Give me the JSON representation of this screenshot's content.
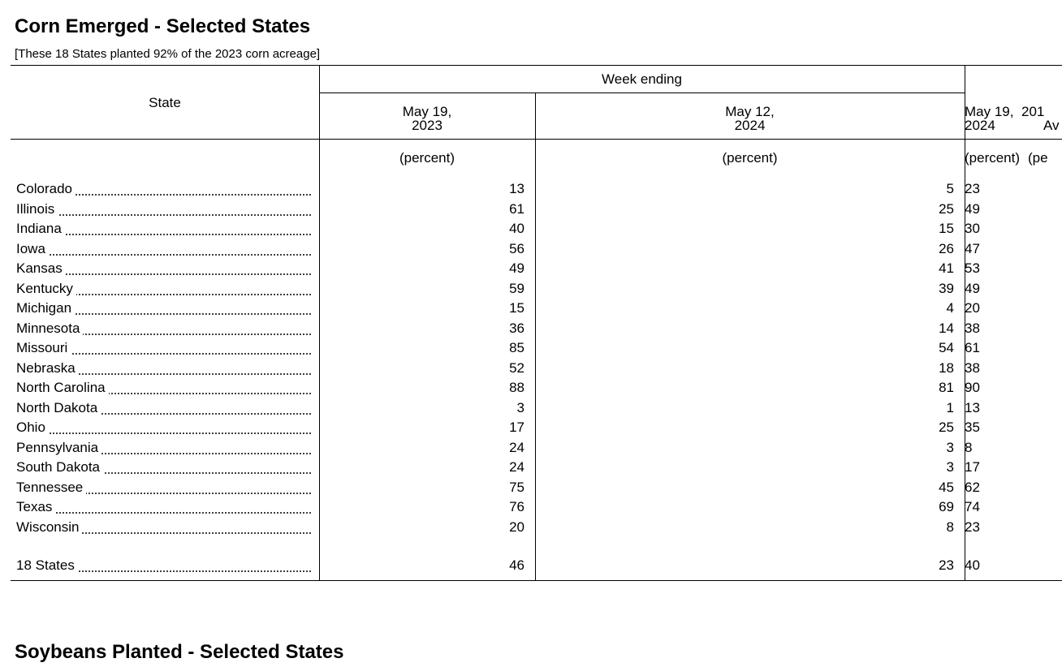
{
  "corn": {
    "title": "Corn Emerged - Selected States",
    "subtitle": "[These 18 States planted 92% of the 2023 corn acreage]",
    "table": {
      "state_header": "State",
      "group_header": "Week ending",
      "columns": [
        {
          "line1": "May 19,",
          "line2": "2023"
        },
        {
          "line1": "May 12,",
          "line2": "2024"
        },
        {
          "line1": "May 19,",
          "line2": "2024"
        }
      ],
      "partial_column": {
        "line1": "201",
        "line2": "Av",
        "unit": "(pe"
      },
      "unit": "(percent)",
      "rows": [
        {
          "state": "Colorado",
          "values": [
            13,
            5,
            23
          ]
        },
        {
          "state": "Illinois",
          "values": [
            61,
            25,
            49
          ]
        },
        {
          "state": "Indiana",
          "values": [
            40,
            15,
            30
          ]
        },
        {
          "state": "Iowa",
          "values": [
            56,
            26,
            47
          ]
        },
        {
          "state": "Kansas",
          "values": [
            49,
            41,
            53
          ]
        },
        {
          "state": "Kentucky",
          "values": [
            59,
            39,
            49
          ]
        },
        {
          "state": "Michigan",
          "values": [
            15,
            4,
            20
          ]
        },
        {
          "state": "Minnesota",
          "values": [
            36,
            14,
            38
          ]
        },
        {
          "state": "Missouri",
          "values": [
            85,
            54,
            61
          ]
        },
        {
          "state": "Nebraska",
          "values": [
            52,
            18,
            38
          ]
        },
        {
          "state": "North Carolina",
          "values": [
            88,
            81,
            90
          ]
        },
        {
          "state": "North Dakota",
          "values": [
            3,
            1,
            13
          ]
        },
        {
          "state": "Ohio",
          "values": [
            17,
            25,
            35
          ]
        },
        {
          "state": "Pennsylvania",
          "values": [
            24,
            3,
            8
          ]
        },
        {
          "state": "South Dakota",
          "values": [
            24,
            3,
            17
          ]
        },
        {
          "state": "Tennessee",
          "values": [
            75,
            45,
            62
          ]
        },
        {
          "state": "Texas",
          "values": [
            76,
            69,
            74
          ]
        },
        {
          "state": "Wisconsin",
          "values": [
            20,
            8,
            23
          ]
        }
      ],
      "total": {
        "state": "18 States",
        "values": [
          46,
          23,
          40
        ]
      }
    }
  },
  "soybeans": {
    "title": "Soybeans Planted - Selected States"
  }
}
